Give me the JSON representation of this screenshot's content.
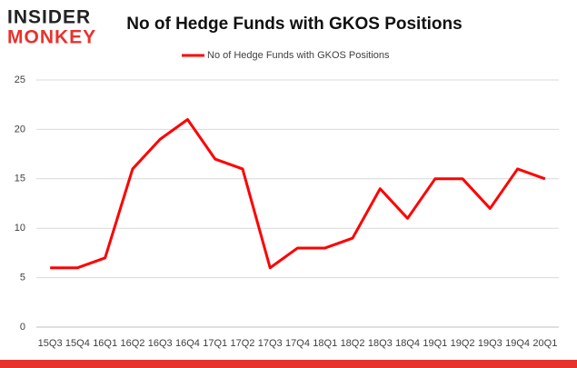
{
  "logo": {
    "top": "INSIDER",
    "bottom": "MONKEY"
  },
  "chart_data": {
    "type": "line",
    "title": "No of Hedge Funds with GKOS Positions",
    "categories": [
      "15Q3",
      "15Q4",
      "16Q1",
      "16Q2",
      "16Q3",
      "16Q4",
      "17Q1",
      "17Q2",
      "17Q3",
      "17Q4",
      "18Q1",
      "18Q2",
      "18Q3",
      "18Q4",
      "19Q1",
      "19Q2",
      "19Q3",
      "19Q4",
      "20Q1"
    ],
    "series": [
      {
        "name": "No of Hedge Funds with GKOS Positions",
        "color": "#ff0000",
        "values": [
          6,
          6,
          7,
          16,
          19,
          21,
          17,
          16,
          6,
          8,
          8,
          9,
          14,
          11,
          15,
          15,
          12,
          16,
          15
        ]
      }
    ],
    "ylim": [
      0,
      25
    ],
    "yticks": [
      0,
      5,
      10,
      15,
      20,
      25
    ],
    "grid": true,
    "legend": "top"
  }
}
